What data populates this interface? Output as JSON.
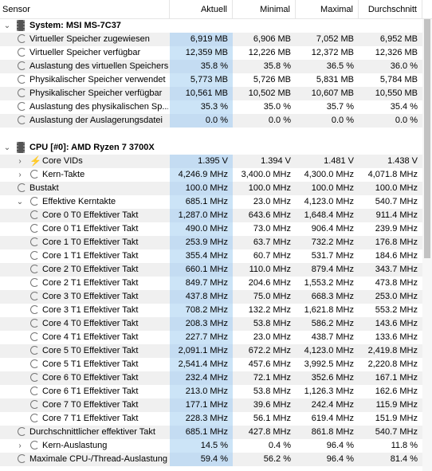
{
  "header": {
    "sensor": "Sensor",
    "current": "Aktuell",
    "minimum": "Minimal",
    "maximum": "Maximal",
    "average": "Durchschnitt"
  },
  "groups": {
    "system": {
      "title": "System: MSI MS-7C37",
      "rows": [
        {
          "label": "Virtueller Speicher zugewiesen",
          "v": [
            "6,919 MB",
            "6,906 MB",
            "7,052 MB",
            "6,952 MB"
          ]
        },
        {
          "label": "Virtueller Speicher verfügbar",
          "v": [
            "12,359 MB",
            "12,226 MB",
            "12,372 MB",
            "12,326 MB"
          ]
        },
        {
          "label": "Auslastung des virtuellen Speichers",
          "v": [
            "35.8 %",
            "35.8 %",
            "36.5 %",
            "36.0 %"
          ]
        },
        {
          "label": "Physikalischer Speicher verwendet",
          "v": [
            "5,773 MB",
            "5,726 MB",
            "5,831 MB",
            "5,784 MB"
          ]
        },
        {
          "label": "Physikalischer Speicher verfügbar",
          "v": [
            "10,561 MB",
            "10,502 MB",
            "10,607 MB",
            "10,550 MB"
          ]
        },
        {
          "label": "Auslastung des physikalischen Sp...",
          "v": [
            "35.3 %",
            "35.0 %",
            "35.7 %",
            "35.4 %"
          ]
        },
        {
          "label": "Auslastung der Auslagerungsdatei",
          "v": [
            "0.0 %",
            "0.0 %",
            "0.0 %",
            "0.0 %"
          ]
        }
      ]
    },
    "cpu": {
      "title": "CPU [#0]: AMD Ryzen 7 3700X",
      "rows": [
        {
          "label": "Core VIDs",
          "v": [
            "1.395 V",
            "1.394 V",
            "1.481 V",
            "1.438 V"
          ]
        },
        {
          "label": "Kern-Takte",
          "v": [
            "4,246.9 MHz",
            "3,400.0 MHz",
            "4,300.0 MHz",
            "4,071.8 MHz"
          ]
        },
        {
          "label": "Bustakt",
          "v": [
            "100.0 MHz",
            "100.0 MHz",
            "100.0 MHz",
            "100.0 MHz"
          ]
        },
        {
          "label": "Effektive Kerntakte",
          "v": [
            "685.1 MHz",
            "23.0 MHz",
            "4,123.0 MHz",
            "540.7 MHz"
          ]
        },
        {
          "label": "Core 0 T0 Effektiver Takt",
          "v": [
            "1,287.0 MHz",
            "643.6 MHz",
            "1,648.4 MHz",
            "911.4 MHz"
          ]
        },
        {
          "label": "Core 0 T1 Effektiver Takt",
          "v": [
            "490.0 MHz",
            "73.0 MHz",
            "906.4 MHz",
            "239.9 MHz"
          ]
        },
        {
          "label": "Core 1 T0 Effektiver Takt",
          "v": [
            "253.9 MHz",
            "63.7 MHz",
            "732.2 MHz",
            "176.8 MHz"
          ]
        },
        {
          "label": "Core 1 T1 Effektiver Takt",
          "v": [
            "355.4 MHz",
            "60.7 MHz",
            "531.7 MHz",
            "184.6 MHz"
          ]
        },
        {
          "label": "Core 2 T0 Effektiver Takt",
          "v": [
            "660.1 MHz",
            "110.0 MHz",
            "879.4 MHz",
            "343.7 MHz"
          ]
        },
        {
          "label": "Core 2 T1 Effektiver Takt",
          "v": [
            "849.7 MHz",
            "204.6 MHz",
            "1,553.2 MHz",
            "473.8 MHz"
          ]
        },
        {
          "label": "Core 3 T0 Effektiver Takt",
          "v": [
            "437.8 MHz",
            "75.0 MHz",
            "668.3 MHz",
            "253.0 MHz"
          ]
        },
        {
          "label": "Core 3 T1 Effektiver Takt",
          "v": [
            "708.2 MHz",
            "132.2 MHz",
            "1,621.8 MHz",
            "553.2 MHz"
          ]
        },
        {
          "label": "Core 4 T0 Effektiver Takt",
          "v": [
            "208.3 MHz",
            "53.8 MHz",
            "586.2 MHz",
            "143.6 MHz"
          ]
        },
        {
          "label": "Core 4 T1 Effektiver Takt",
          "v": [
            "227.7 MHz",
            "23.0 MHz",
            "438.7 MHz",
            "133.6 MHz"
          ]
        },
        {
          "label": "Core 5 T0 Effektiver Takt",
          "v": [
            "2,091.1 MHz",
            "672.2 MHz",
            "4,123.0 MHz",
            "2,419.8 MHz"
          ]
        },
        {
          "label": "Core 5 T1 Effektiver Takt",
          "v": [
            "2,541.4 MHz",
            "457.6 MHz",
            "3,992.5 MHz",
            "2,220.8 MHz"
          ]
        },
        {
          "label": "Core 6 T0 Effektiver Takt",
          "v": [
            "232.4 MHz",
            "72.1 MHz",
            "352.6 MHz",
            "167.1 MHz"
          ]
        },
        {
          "label": "Core 6 T1 Effektiver Takt",
          "v": [
            "213.0 MHz",
            "53.8 MHz",
            "1,126.3 MHz",
            "162.6 MHz"
          ]
        },
        {
          "label": "Core 7 T0 Effektiver Takt",
          "v": [
            "177.1 MHz",
            "39.6 MHz",
            "242.4 MHz",
            "115.9 MHz"
          ]
        },
        {
          "label": "Core 7 T1 Effektiver Takt",
          "v": [
            "228.3 MHz",
            "56.1 MHz",
            "619.4 MHz",
            "151.9 MHz"
          ]
        },
        {
          "label": "Durchschnittlicher effektiver Takt",
          "v": [
            "685.1 MHz",
            "427.8 MHz",
            "861.8 MHz",
            "540.7 MHz"
          ]
        },
        {
          "label": "Kern-Auslastung",
          "v": [
            "14.5 %",
            "0.4 %",
            "96.4 %",
            "11.8 %"
          ]
        },
        {
          "label": "Maximale CPU-/Thread-Auslastung",
          "v": [
            "59.4 %",
            "56.2 %",
            "96.4 %",
            "81.4 %"
          ]
        }
      ]
    }
  }
}
